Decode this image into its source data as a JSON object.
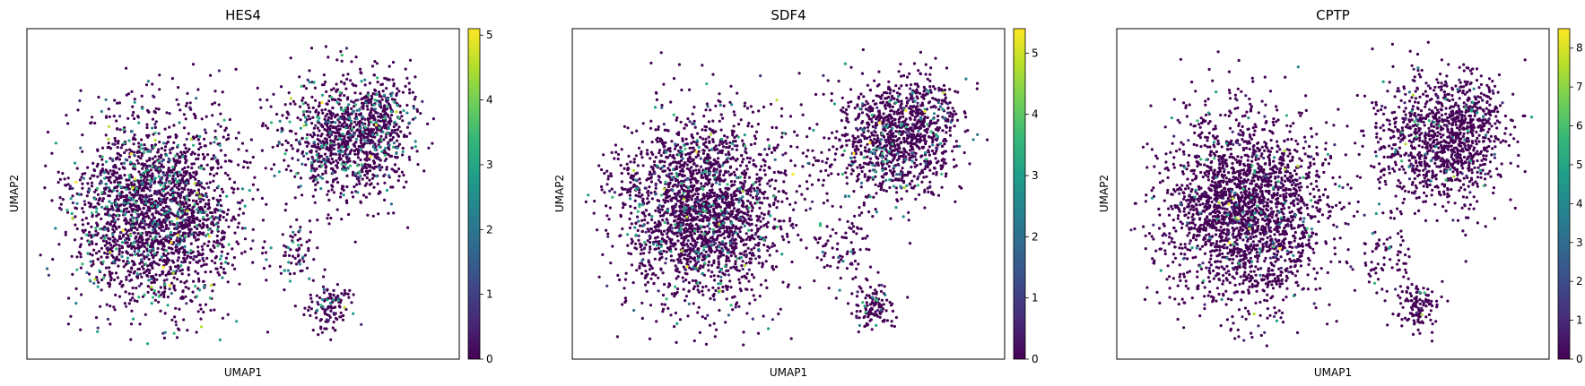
{
  "colormap": [
    "#440154",
    "#482878",
    "#3e4989",
    "#31688e",
    "#26828e",
    "#1f9e89",
    "#35b779",
    "#6ece58",
    "#b5de2b",
    "#fde725"
  ],
  "chart_data": [
    {
      "type": "scatter",
      "title": "HES4",
      "xlabel": "UMAP1",
      "ylabel": "UMAP2",
      "colorbar": {
        "min": 0,
        "max": 5.1,
        "ticks": [
          "0",
          "1",
          "2",
          "3",
          "4",
          "5"
        ]
      },
      "high_value_fraction": 0.14,
      "seed": 11,
      "grid": false,
      "xticks": false,
      "yticks": false
    },
    {
      "type": "scatter",
      "title": "SDF4",
      "xlabel": "UMAP1",
      "ylabel": "UMAP2",
      "colorbar": {
        "min": 0,
        "max": 5.4,
        "ticks": [
          "0",
          "1",
          "2",
          "3",
          "4",
          "5"
        ]
      },
      "high_value_fraction": 0.09,
      "seed": 29,
      "grid": false,
      "xticks": false,
      "yticks": false
    },
    {
      "type": "scatter",
      "title": "CPTP",
      "xlabel": "UMAP1",
      "ylabel": "UMAP2",
      "colorbar": {
        "min": 0,
        "max": 8.5,
        "ticks": [
          "0",
          "1",
          "2",
          "3",
          "4",
          "5",
          "6",
          "7",
          "8"
        ]
      },
      "high_value_fraction": 0.04,
      "seed": 47,
      "grid": false,
      "xticks": false,
      "yticks": false
    }
  ]
}
